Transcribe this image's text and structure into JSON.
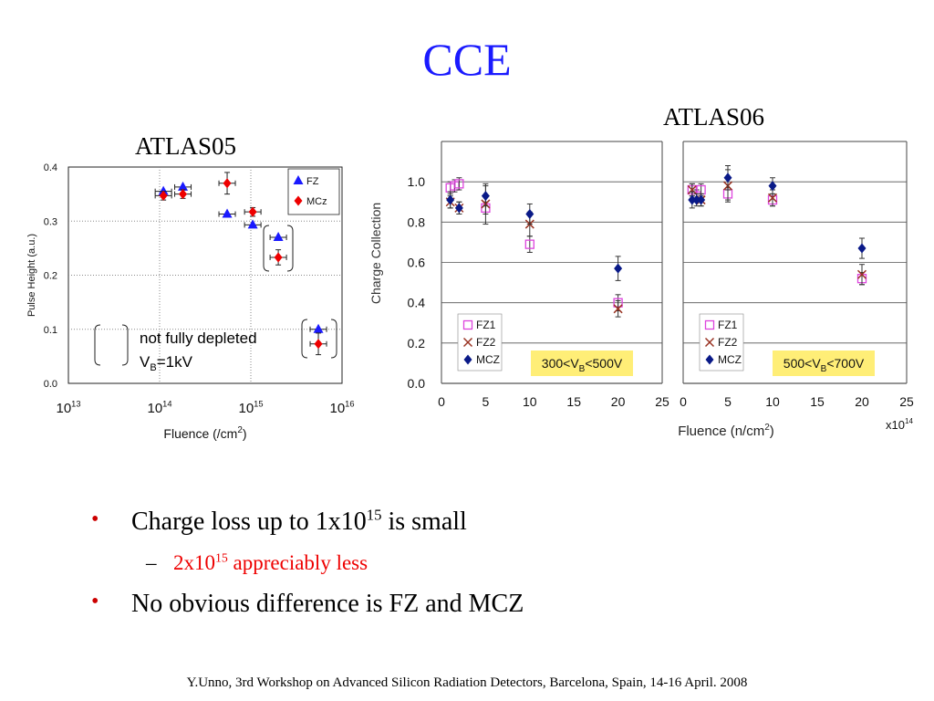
{
  "slide": {
    "title": "CCE",
    "left_panel_title": "ATLAS05",
    "right_panel_title": "ATLAS06",
    "bullets": [
      {
        "text": "Charge loss up to 1x10",
        "sup": "15",
        "tail": " is small"
      },
      {
        "text": "No obvious difference is FZ and MCZ"
      }
    ],
    "sub_bullet": {
      "text": "2x10",
      "sup": "15",
      "tail": " appreciably less"
    },
    "bullet_symbol": "•",
    "dash_symbol": "–",
    "footer": "Y.Unno, 3rd Workshop on Advanced Silicon Radiation Detectors, Barcelona, Spain, 14-16 April. 2008"
  },
  "colors": {
    "title": "#1a1aff",
    "fz": "#1a1aff",
    "mcz": "#ee0000",
    "fz1": "#dd44dd",
    "fz2": "#993322",
    "mcz06": "#0a1a88",
    "annot_box": "#ffee77"
  },
  "chart_data": [
    {
      "type": "scatter",
      "title": "ATLAS05",
      "xlabel": "Fluence (/cm2)",
      "ylabel": "Pulse Height (a.u.)",
      "x_scale": "log",
      "xlim": [
        10000000000000.0,
        1e+16
      ],
      "ylim": [
        0.0,
        0.4
      ],
      "x_tick_labels": [
        "10^13",
        "10^14",
        "10^15",
        "10^16"
      ],
      "y_tick_labels": [
        "0.0",
        "0.1",
        "0.2",
        "0.3",
        "0.4"
      ],
      "y_ticks": [
        0.0,
        0.1,
        0.2,
        0.3,
        0.4
      ],
      "grid": "dotted",
      "legend": {
        "position": "top-right",
        "entries": [
          "FZ",
          "MCz"
        ]
      },
      "annotation": {
        "text": "not fully depleted",
        "vb_prefix": "V",
        "vb_sub": "B",
        "vb_value": "=1kV"
      },
      "series": [
        {
          "name": "FZ",
          "marker": "triangle",
          "x": [
            110000000000000.0,
            180000000000000.0,
            550000000000000.0,
            1050000000000000.0,
            2000000000000000.0,
            5500000000000000.0
          ],
          "y": [
            0.355,
            0.363,
            0.313,
            0.293,
            0.27,
            0.1
          ]
        },
        {
          "name": "MCz",
          "marker": "diamond",
          "x": [
            110000000000000.0,
            180000000000000.0,
            550000000000000.0,
            1050000000000000.0,
            2000000000000000.0,
            5500000000000000.0
          ],
          "y": [
            0.347,
            0.35,
            0.37,
            0.317,
            0.233,
            0.073
          ],
          "y_err": [
            0.008,
            0.008,
            0.02,
            0.008,
            0.014,
            0.02
          ]
        }
      ]
    },
    {
      "type": "scatter",
      "title": "ATLAS06",
      "xlabel": "Fluence (n/cm2)",
      "x_multiplier": "x10^14",
      "ylabel": "Charge Collection",
      "xlim": [
        0,
        25
      ],
      "ylim": [
        0.0,
        1.2
      ],
      "x_tick_labels": [
        "0",
        "5",
        "10",
        "15",
        "20",
        "25"
      ],
      "y_tick_labels": [
        "0.0",
        "0.2",
        "0.4",
        "0.6",
        "0.8",
        "1.0"
      ],
      "y_ticks": [
        0.0,
        0.2,
        0.4,
        0.6,
        0.8,
        1.0
      ],
      "grid": "horizontal",
      "panels": [
        {
          "annotation": {
            "prefix": "300<V",
            "sub": "B",
            "suffix": "<500V"
          },
          "legend": {
            "position": "bottom-left",
            "entries": [
              "FZ1",
              "FZ2",
              "MCZ"
            ]
          },
          "series": [
            {
              "name": "FZ1",
              "marker": "square",
              "x": [
                1,
                1.5,
                2,
                5,
                10,
                20
              ],
              "y": [
                0.97,
                0.98,
                0.99,
                0.87,
                0.69,
                0.4
              ],
              "y_err": [
                0.03,
                0.03,
                0.03,
                0.03,
                0.04,
                0.04
              ]
            },
            {
              "name": "FZ2",
              "marker": "x",
              "x": [
                1,
                2,
                5,
                10,
                20
              ],
              "y": [
                0.9,
                0.87,
                0.89,
                0.79,
                0.37
              ],
              "y_err": [
                0.03,
                0.03,
                0.1,
                0.06,
                0.04
              ]
            },
            {
              "name": "MCZ",
              "marker": "diamond",
              "x": [
                1,
                2,
                5,
                10,
                20
              ],
              "y": [
                0.91,
                0.87,
                0.93,
                0.84,
                0.57
              ],
              "y_err": [
                0.04,
                0.03,
                0.05,
                0.05,
                0.06
              ]
            }
          ]
        },
        {
          "annotation": {
            "prefix": "500<V",
            "sub": "B",
            "suffix": "<700V"
          },
          "legend": {
            "position": "bottom-left",
            "entries": [
              "FZ1",
              "FZ2",
              "MCZ"
            ]
          },
          "series": [
            {
              "name": "FZ1",
              "marker": "square",
              "x": [
                1,
                1.5,
                2,
                5,
                10,
                20
              ],
              "y": [
                0.96,
                0.93,
                0.96,
                0.94,
                0.91,
                0.52
              ],
              "y_err": [
                0.03,
                0.03,
                0.03,
                0.03,
                0.03,
                0.03
              ]
            },
            {
              "name": "FZ2",
              "marker": "x",
              "x": [
                1,
                2,
                5,
                10,
                20
              ],
              "y": [
                0.96,
                0.91,
                0.98,
                0.92,
                0.54
              ],
              "y_err": [
                0.03,
                0.03,
                0.08,
                0.04,
                0.05
              ]
            },
            {
              "name": "MCZ",
              "marker": "diamond",
              "x": [
                1,
                1.5,
                2,
                5,
                10,
                20
              ],
              "y": [
                0.91,
                0.91,
                0.91,
                1.02,
                0.98,
                0.67
              ],
              "y_err": [
                0.04,
                0.03,
                0.03,
                0.06,
                0.04,
                0.05
              ]
            }
          ]
        }
      ]
    }
  ]
}
